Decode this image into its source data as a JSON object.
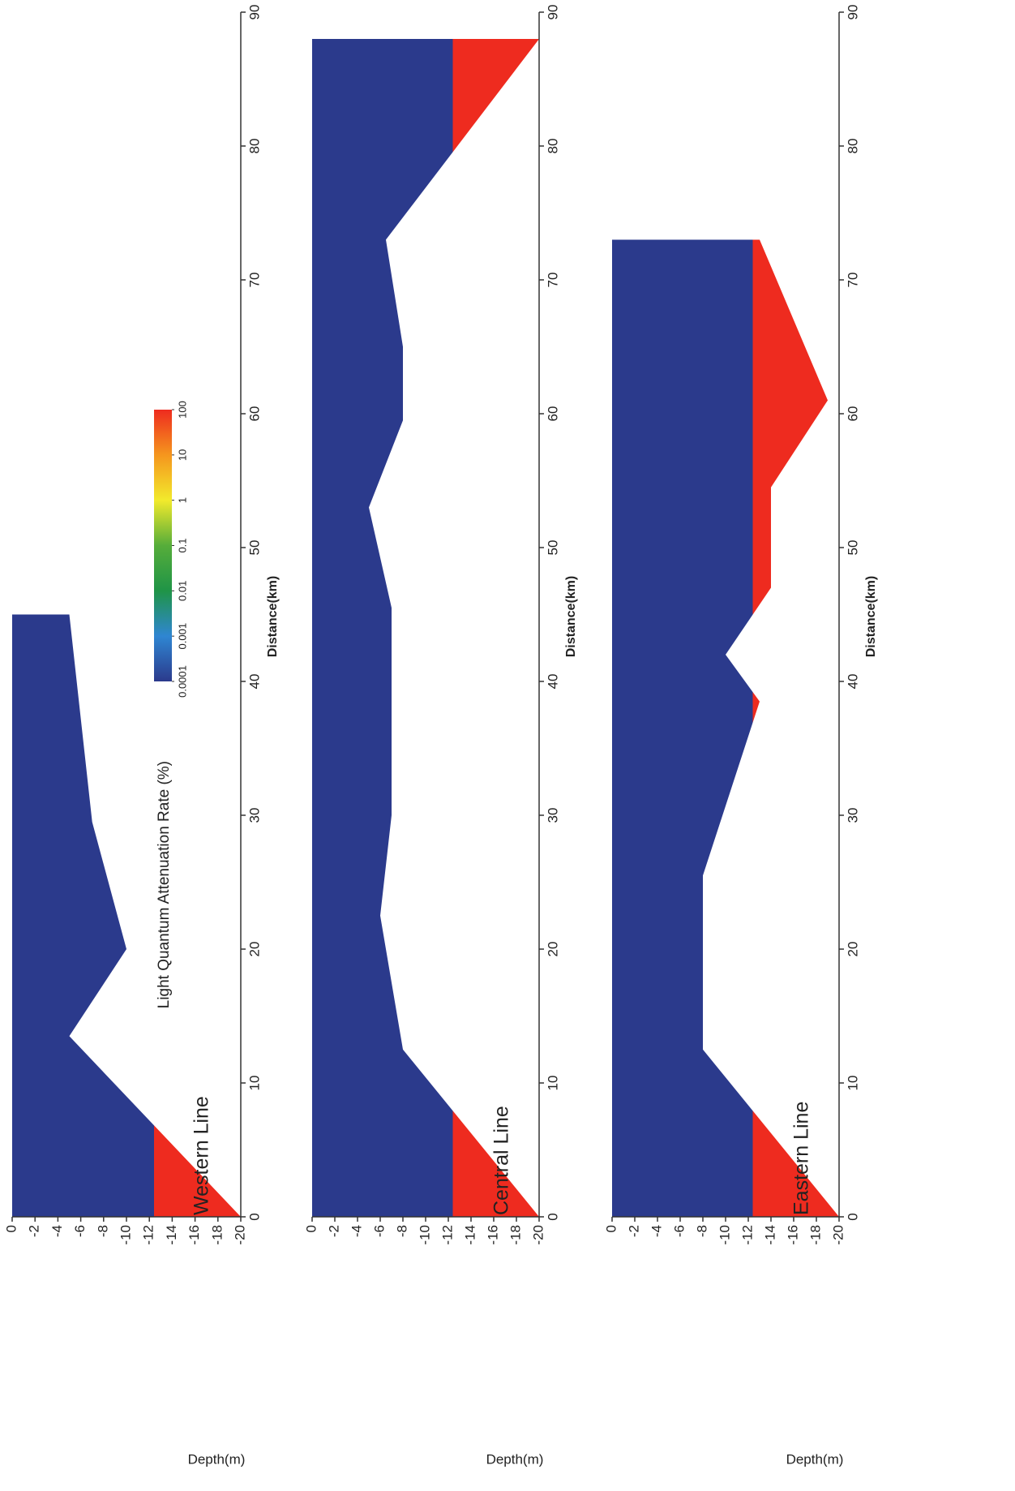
{
  "chart_data": [
    {
      "type": "contour",
      "title": "Western Line",
      "xlabel": "Distance(km)",
      "ylabel": "Depth(m)",
      "x": [
        0,
        13.5,
        20,
        29.5,
        45
      ],
      "values": [
        -20,
        -5,
        -10,
        -7,
        -5
      ],
      "xlim": [
        0,
        90
      ],
      "xticks": [
        0,
        10,
        20,
        30,
        40,
        50,
        60,
        70,
        80,
        90
      ],
      "ylim": [
        -20,
        0
      ],
      "yticks": [
        0,
        -2,
        -4,
        -6,
        -8,
        -10,
        -12,
        -14,
        -16,
        -18,
        -20
      ]
    },
    {
      "type": "contour",
      "title": "Central Line",
      "xlabel": "Distance(km)",
      "ylabel": "Depth(m)",
      "x": [
        0,
        12.5,
        22.5,
        30,
        45.5,
        53,
        59.5,
        65,
        73,
        88
      ],
      "values": [
        -20,
        -8,
        -6,
        -7,
        -7,
        -5,
        -8,
        -8,
        -6.5,
        -20
      ],
      "xlim": [
        0,
        90
      ],
      "xticks": [
        0,
        10,
        20,
        30,
        40,
        50,
        60,
        70,
        80,
        90
      ],
      "ylim": [
        -20,
        0
      ],
      "yticks": [
        0,
        -2,
        -4,
        -6,
        -8,
        -10,
        -12,
        -14,
        -16,
        -18,
        -20
      ]
    },
    {
      "type": "contour",
      "title": "Eastern Line",
      "xlabel": "Distance(km)",
      "ylabel": "Depth(m)",
      "x": [
        0,
        12.5,
        25.5,
        38.5,
        42,
        47,
        54.5,
        61,
        73
      ],
      "values": [
        -20,
        -8,
        -8,
        -13,
        -10,
        -14,
        -14,
        -19,
        -13
      ],
      "xlim": [
        0,
        90
      ],
      "xticks": [
        0,
        10,
        20,
        30,
        40,
        50,
        60,
        70,
        80,
        90
      ],
      "ylim": [
        -20,
        0
      ],
      "yticks": [
        0,
        -2,
        -4,
        -6,
        -8,
        -10,
        -12,
        -14,
        -16,
        -18,
        -20
      ]
    }
  ],
  "colorbar": {
    "title": "Light Quantum Attenuation Rate (%)",
    "log": true,
    "ticks": [
      0.0001,
      0.001,
      0.01,
      0.1,
      1,
      10,
      100
    ],
    "colors": [
      "#2b3a8c",
      "#2f86d2",
      "#1f9447",
      "#56ad3a",
      "#f2ea2c",
      "#f5961e",
      "#ee2b1f"
    ]
  }
}
